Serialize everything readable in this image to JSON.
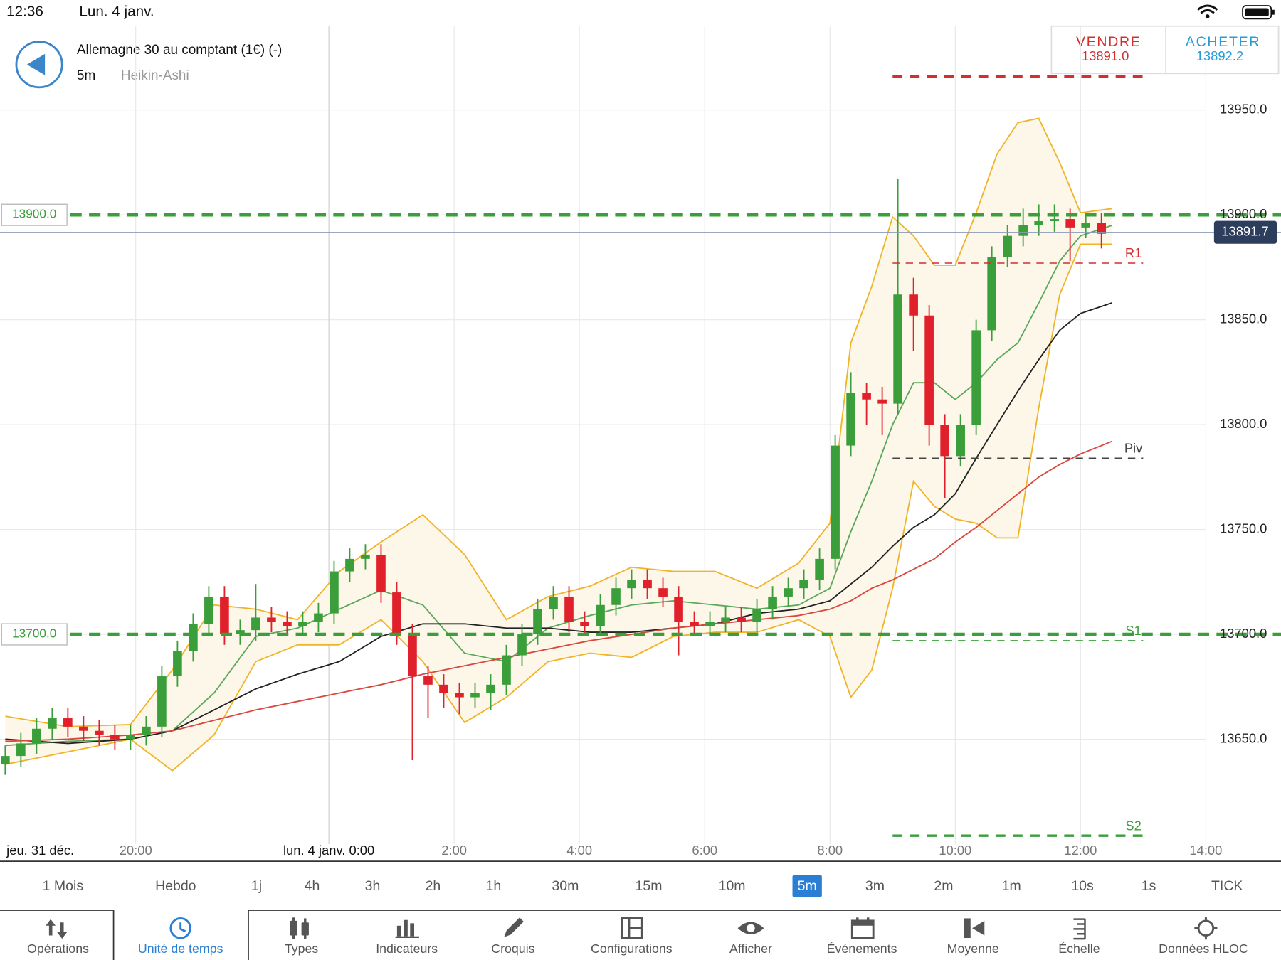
{
  "status_bar": {
    "time": "12:36",
    "date": "Lun. 4 janv."
  },
  "header": {
    "title": "Allemagne 30 au comptant (1€) (-)",
    "interval": "5m",
    "chart_type": "Heikin-Ashi",
    "sell_label": "VENDRE",
    "sell_price": "13891.0",
    "buy_label": "ACHETER",
    "buy_price": "13892.2"
  },
  "timeframes": {
    "items": [
      "1 Mois",
      "Hebdo",
      "1j",
      "4h",
      "3h",
      "2h",
      "1h",
      "30m",
      "15m",
      "10m",
      "5m",
      "3m",
      "2m",
      "1m",
      "10s",
      "1s",
      "TICK"
    ],
    "selected_index": 10
  },
  "toolbar": {
    "items": [
      "Opérations",
      "Unité de temps",
      "Types",
      "Indicateurs",
      "Croquis",
      "Configurations",
      "Afficher",
      "Événements",
      "Moyenne",
      "Échelle",
      "Données HLOC"
    ],
    "selected_index": 1
  },
  "chart_data": {
    "type": "candlestick",
    "up_color": "#3a9e3a",
    "down_color": "#e0202a",
    "xlim": [
      -63,
      168
    ],
    "ylim": [
      13600,
      13990
    ],
    "x_start_label": "jeu. 31 déc.",
    "xticks": [
      {
        "value": -37,
        "label": "20:00"
      },
      {
        "value": 0,
        "label": "lun. 4 janv. 0:00"
      },
      {
        "value": 24,
        "label": "2:00"
      },
      {
        "value": 48,
        "label": "4:00"
      },
      {
        "value": 72,
        "label": "6:00"
      },
      {
        "value": 96,
        "label": "8:00"
      },
      {
        "value": 120,
        "label": "10:00"
      },
      {
        "value": 144,
        "label": "12:00"
      },
      {
        "value": 168,
        "label": "14:00"
      }
    ],
    "yticks": [
      {
        "value": 13650,
        "label": "13650.0"
      },
      {
        "value": 13700,
        "label": "13700.0"
      },
      {
        "value": 13750,
        "label": "13750.0"
      },
      {
        "value": 13800,
        "label": "13800.0"
      },
      {
        "value": 13850,
        "label": "13850.0"
      },
      {
        "value": 13900,
        "label": "13900.0"
      },
      {
        "value": 13950,
        "label": "13950.0"
      }
    ],
    "grid": true,
    "x": [
      -62,
      -59,
      -56,
      -53,
      -50,
      -47,
      -44,
      -41,
      -38,
      -35,
      -32,
      -29,
      -26,
      -23,
      -20,
      -17,
      -14,
      -11,
      -8,
      -5,
      -2,
      1,
      4,
      7,
      10,
      13,
      16,
      19,
      22,
      25,
      28,
      31,
      34,
      37,
      40,
      43,
      46,
      49,
      52,
      55,
      58,
      61,
      64,
      67,
      70,
      73,
      76,
      79,
      82,
      85,
      88,
      91,
      94,
      97,
      100,
      103,
      106,
      109,
      112,
      115,
      118,
      121,
      124,
      127,
      130,
      133,
      136,
      139,
      142,
      145,
      148
    ],
    "open": [
      13638,
      13642,
      13648,
      13655,
      13660,
      13656,
      13654,
      13652,
      13650,
      13652,
      13656,
      13680,
      13692,
      13705,
      13718,
      13700,
      13702,
      13708,
      13706,
      13704,
      13706,
      13710,
      13730,
      13736,
      13738,
      13720,
      13700,
      13680,
      13676,
      13672,
      13670,
      13672,
      13676,
      13690,
      13700,
      13712,
      13718,
      13706,
      13704,
      13714,
      13722,
      13726,
      13722,
      13718,
      13706,
      13704,
      13706,
      13708,
      13706,
      13712,
      13718,
      13722,
      13726,
      13736,
      13790,
      13815,
      13812,
      13810,
      13862,
      13852,
      13800,
      13785,
      13800,
      13845,
      13880,
      13890,
      13895,
      13897,
      13898,
      13894,
      13896
    ],
    "high": [
      13647,
      13653,
      13660,
      13665,
      13665,
      13661,
      13659,
      13657,
      13657,
      13661,
      13685,
      13697,
      13710,
      13723,
      13723,
      13707,
      13724,
      13713,
      13711,
      13711,
      13715,
      13735,
      13741,
      13743,
      13743,
      13725,
      13705,
      13685,
      13681,
      13677,
      13677,
      13681,
      13695,
      13705,
      13717,
      13723,
      13723,
      13711,
      13719,
      13727,
      13731,
      13731,
      13727,
      13723,
      13711,
      13711,
      13713,
      13713,
      13717,
      13723,
      13727,
      13731,
      13741,
      13795,
      13825,
      13820,
      13818,
      13917,
      13870,
      13857,
      13805,
      13805,
      13850,
      13885,
      13895,
      13903,
      13905,
      13905,
      13903,
      13901,
      13901
    ],
    "low": [
      13633,
      13637,
      13643,
      13650,
      13651,
      13649,
      13647,
      13645,
      13645,
      13647,
      13651,
      13675,
      13687,
      13700,
      13695,
      13695,
      13697,
      13701,
      13699,
      13699,
      13701,
      13705,
      13725,
      13731,
      13715,
      13695,
      13640,
      13660,
      13665,
      13662,
      13665,
      13664,
      13671,
      13685,
      13695,
      13707,
      13701,
      13699,
      13699,
      13709,
      13717,
      13717,
      13713,
      13690,
      13699,
      13699,
      13701,
      13701,
      13701,
      13707,
      13713,
      13717,
      13721,
      13731,
      13785,
      13800,
      13795,
      13805,
      13835,
      13790,
      13765,
      13780,
      13795,
      13840,
      13875,
      13885,
      13890,
      13892,
      13878,
      13889,
      13884
    ],
    "close": [
      13642,
      13648,
      13655,
      13660,
      13656,
      13654,
      13652,
      13650,
      13652,
      13656,
      13680,
      13692,
      13705,
      13718,
      13700,
      13702,
      13708,
      13706,
      13704,
      13706,
      13710,
      13730,
      13736,
      13738,
      13720,
      13700,
      13680,
      13676,
      13672,
      13670,
      13672,
      13676,
      13690,
      13700,
      13712,
      13718,
      13706,
      13704,
      13714,
      13722,
      13726,
      13722,
      13718,
      13706,
      13704,
      13706,
      13708,
      13706,
      13712,
      13718,
      13722,
      13726,
      13736,
      13790,
      13815,
      13812,
      13810,
      13862,
      13852,
      13800,
      13785,
      13800,
      13845,
      13880,
      13890,
      13895,
      13897,
      13898,
      13894,
      13896,
      13891
    ],
    "band_color": "#fdf7ea",
    "line_x": [
      -62,
      -50,
      -38,
      -30,
      -22,
      -14,
      -6,
      2,
      10,
      18,
      26,
      34,
      42,
      50,
      58,
      66,
      74,
      82,
      90,
      96,
      100,
      104,
      108,
      112,
      116,
      120,
      124,
      128,
      132,
      136,
      140,
      144,
      150
    ],
    "lines": [
      {
        "color": "#f0b429",
        "values": [
          13661,
          13656,
          13657,
          13683,
          13714,
          13712,
          13707,
          13730,
          13744,
          13757,
          13738,
          13707,
          13718,
          13723,
          13732,
          13730,
          13730,
          13722,
          13734,
          13753,
          13839,
          13866,
          13899,
          13890,
          13876,
          13876,
          13901,
          13929,
          13944,
          13946,
          13925,
          13901,
          13903
        ]
      },
      {
        "color": "#f0b429",
        "values": [
          13638,
          13644,
          13650,
          13635,
          13652,
          13687,
          13695,
          13695,
          13707,
          13687,
          13658,
          13670,
          13687,
          13691,
          13689,
          13699,
          13701,
          13701,
          13707,
          13699,
          13670,
          13683,
          13722,
          13773,
          13761,
          13755,
          13753,
          13746,
          13746,
          13808,
          13862,
          13886,
          13886
        ]
      },
      {
        "color": "#5aa85a",
        "values": [
          13647,
          13649,
          13650,
          13654,
          13672,
          13699,
          13703,
          13712,
          13721,
          13714,
          13691,
          13687,
          13703,
          13709,
          13714,
          13716,
          13714,
          13712,
          13714,
          13722,
          13749,
          13773,
          13800,
          13820,
          13820,
          13812,
          13820,
          13831,
          13839,
          13858,
          13878,
          13890,
          13895
        ]
      },
      {
        "color": "#222222",
        "values": [
          13650,
          13648,
          13650,
          13654,
          13664,
          13674,
          13681,
          13687,
          13699,
          13705,
          13705,
          13703,
          13703,
          13701,
          13701,
          13703,
          13705,
          13710,
          13712,
          13716,
          13724,
          13732,
          13742,
          13751,
          13757,
          13767,
          13784,
          13800,
          13816,
          13831,
          13845,
          13853,
          13858
        ]
      },
      {
        "color": "#d9473f",
        "values": [
          13649,
          13650,
          13652,
          13654,
          13659,
          13664,
          13668,
          13672,
          13676,
          13681,
          13685,
          13689,
          13693,
          13697,
          13700,
          13703,
          13705,
          13707,
          13709,
          13712,
          13716,
          13722,
          13726,
          13731,
          13736,
          13744,
          13751,
          13759,
          13767,
          13775,
          13781,
          13786,
          13792
        ]
      }
    ],
    "levels": [
      {
        "value": 13900,
        "label": "13900.0",
        "color": "#3a9e3a"
      },
      {
        "value": 13700,
        "label": "13700.0",
        "color": "#3a9e3a"
      }
    ],
    "pivots": [
      {
        "value": 13966,
        "color": "#d32f2f",
        "from": 108,
        "to": 156,
        "thick": true
      },
      {
        "name": "R1",
        "value": 13877,
        "color": "#d32f2f",
        "from": 108,
        "to": 156
      },
      {
        "name": "Piv",
        "value": 13784,
        "color": "#444444",
        "from": 108,
        "to": 156
      },
      {
        "name": "S1",
        "value": 13697,
        "color": "#3a9e3a",
        "from": 108,
        "to": 156
      },
      {
        "name": "S2",
        "value": 13604,
        "color": "#3a9e3a",
        "from": 108,
        "to": 156,
        "thick": true
      }
    ],
    "current": 13891.7,
    "current_color": "#2d3e5c"
  }
}
